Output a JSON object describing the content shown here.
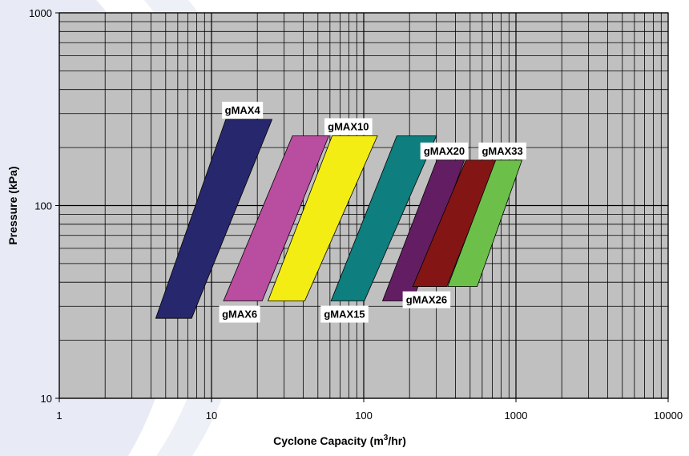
{
  "chart_data": {
    "type": "area",
    "x_scale": "log",
    "y_scale": "log",
    "xlim": [
      1,
      10000
    ],
    "ylim": [
      10,
      1000
    ],
    "x_ticks": [
      "1",
      "10",
      "100",
      "1000",
      "10000"
    ],
    "y_ticks": [
      "10",
      "100",
      "1000"
    ],
    "xlabel_prefix": "Cyclone Capacity (m",
    "xlabel_sup": "3",
    "xlabel_suffix": "/hr)",
    "ylabel": "Pressure (kPa)",
    "grid": true,
    "plot_background": "#c0c0c0",
    "series": [
      {
        "name": "gMAX4",
        "color": "#27276e",
        "label_pos": "top",
        "polygon": [
          [
            4.3,
            26
          ],
          [
            7.4,
            26
          ],
          [
            25,
            280
          ],
          [
            12.4,
            280
          ]
        ]
      },
      {
        "name": "gMAX6",
        "color": "#b94d9f",
        "label_pos": "bottom",
        "polygon": [
          [
            12,
            32
          ],
          [
            21.5,
            32
          ],
          [
            59,
            230
          ],
          [
            34,
            230
          ]
        ]
      },
      {
        "name": "gMAX10",
        "color": "#f4ed14",
        "label_pos": "top",
        "polygon": [
          [
            23.5,
            32
          ],
          [
            41,
            32
          ],
          [
            123,
            230
          ],
          [
            62,
            230
          ]
        ]
      },
      {
        "name": "gMAX15",
        "color": "#0e7e7e",
        "label_pos": "bottom",
        "polygon": [
          [
            61,
            32
          ],
          [
            101,
            32
          ],
          [
            300,
            230
          ],
          [
            165,
            230
          ]
        ]
      },
      {
        "name": "gMAX20",
        "color": "#631e63",
        "label_pos": "top",
        "polygon": [
          [
            133,
            32
          ],
          [
            210,
            32
          ],
          [
            459,
            172
          ],
          [
            302,
            172
          ]
        ]
      },
      {
        "name": "gMAX26",
        "color": "#841515",
        "label_pos": "bottom",
        "polygon": [
          [
            210,
            38
          ],
          [
            351,
            38
          ],
          [
            749,
            172
          ],
          [
            469,
            172
          ]
        ]
      },
      {
        "name": "gMAX33",
        "color": "#6cc049",
        "label_pos": "top",
        "polygon": [
          [
            356,
            38
          ],
          [
            556,
            38
          ],
          [
            1095,
            172
          ],
          [
            736,
            172
          ]
        ]
      }
    ]
  }
}
